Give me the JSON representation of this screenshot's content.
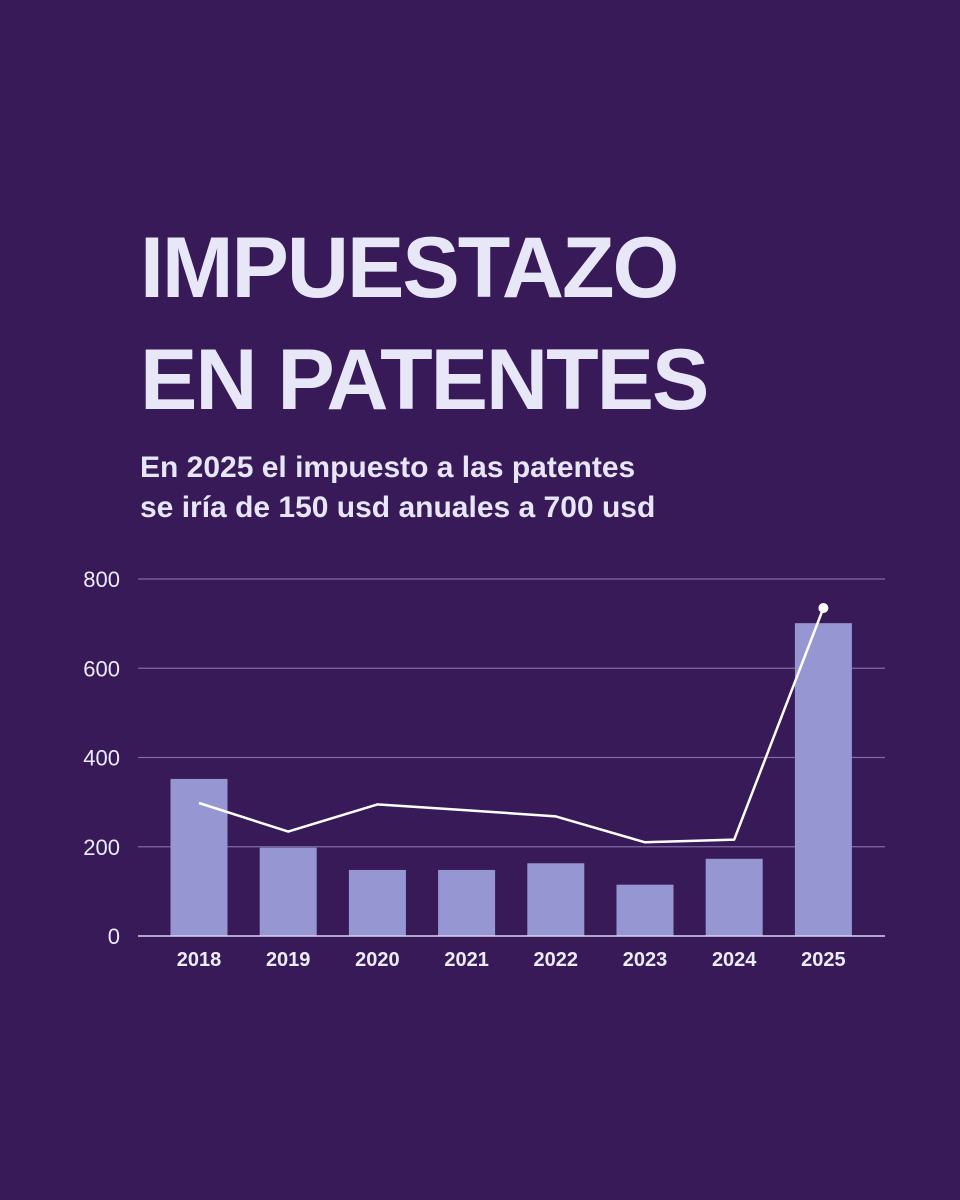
{
  "title_lines": [
    "IMPUESTAZO",
    "EN PATENTES"
  ],
  "subtitle_lines": [
    "En 2025 el impuesto a las patentes",
    "se iría de 150 usd anuales a 700 usd"
  ],
  "colors": {
    "background": "#381a59",
    "bar": "#9696d3",
    "line": "#ffffff",
    "grid": "#7e6aa4",
    "text": "#e6e6f7"
  },
  "chart_data": {
    "type": "bar",
    "categories": [
      "2018",
      "2019",
      "2020",
      "2021",
      "2022",
      "2023",
      "2024",
      "2025"
    ],
    "series": [
      {
        "type": "bar",
        "values": [
          352,
          198,
          148,
          148,
          163,
          115,
          173,
          701
        ]
      },
      {
        "type": "line",
        "values": [
          298,
          234,
          295,
          282,
          268,
          210,
          216,
          735
        ]
      }
    ],
    "yticks": [
      0,
      200,
      400,
      600,
      800
    ],
    "ylim": [
      0,
      800
    ],
    "grid": true
  }
}
